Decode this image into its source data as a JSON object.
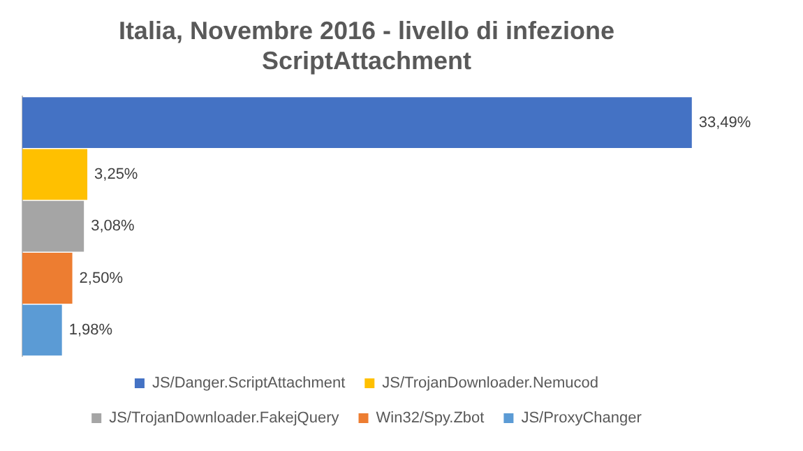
{
  "chart_data": {
    "type": "bar",
    "orientation": "horizontal",
    "stacked": true,
    "title": "Italia, Novembre 2016 - livello di infezione\nScriptAttachment",
    "categories": [
      null,
      null,
      null,
      null,
      null
    ],
    "legend": "bottom",
    "series": [
      {
        "name": "JS/Danger.ScriptAttachment",
        "color": "#4472c4",
        "values": [
          33.49,
          null,
          null,
          null,
          null
        ],
        "value_labels": [
          "33,49%",
          null,
          null,
          null,
          null
        ]
      },
      {
        "name": "JS/TrojanDownloader.Nemucod",
        "color": "#ffc000",
        "values": [
          null,
          3.25,
          null,
          null,
          null
        ],
        "value_labels": [
          null,
          "3,25%",
          null,
          null,
          null
        ]
      },
      {
        "name": "JS/TrojanDownloader.FakejQuery",
        "color": "#a5a5a5",
        "values": [
          null,
          null,
          3.08,
          null,
          null
        ],
        "value_labels": [
          null,
          null,
          "3,08%",
          null,
          null
        ]
      },
      {
        "name": "Win32/Spy.Zbot",
        "color": "#ed7d31",
        "values": [
          null,
          null,
          null,
          2.5,
          null
        ],
        "value_labels": [
          null,
          null,
          null,
          "2,50%",
          null
        ]
      },
      {
        "name": "JS/ProxyChanger",
        "color": "#5b9bd5",
        "values": [
          null,
          null,
          null,
          null,
          1.98
        ],
        "value_labels": [
          null,
          null,
          null,
          null,
          "1,98%"
        ]
      }
    ]
  }
}
